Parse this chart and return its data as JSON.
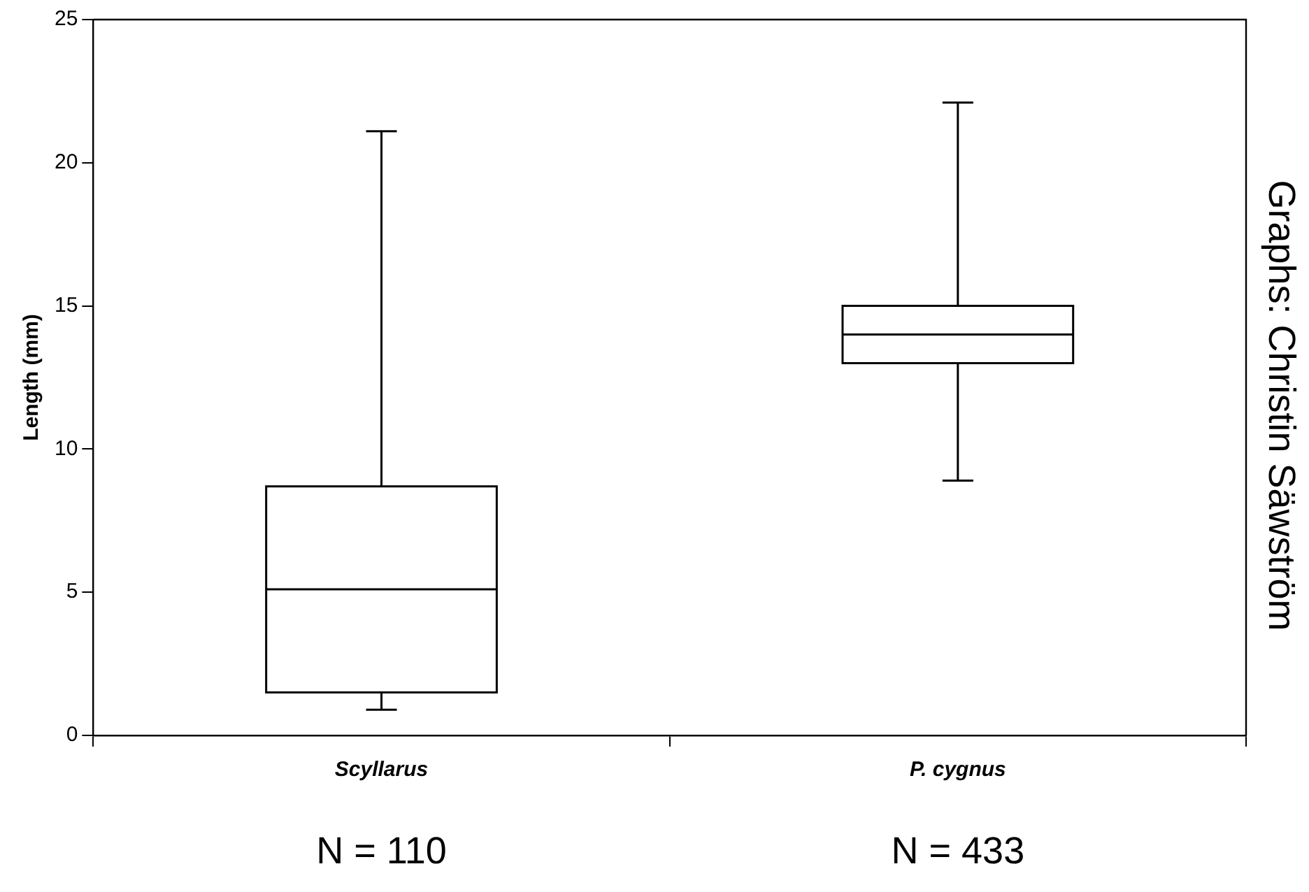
{
  "chart_data": {
    "type": "box",
    "ylabel": "Length (mm)",
    "categories": [
      "Scyllarus",
      "P. cygnus"
    ],
    "boxes": [
      {
        "low": 0.9,
        "q1": 1.5,
        "median": 5.1,
        "q3": 8.7,
        "high": 21.1
      },
      {
        "low": 8.9,
        "q1": 13,
        "median": 14,
        "q3": 15,
        "high": 22.1
      }
    ],
    "ylim": [
      0,
      25
    ],
    "yticks": [
      0,
      5,
      10,
      15,
      20,
      25
    ],
    "grid": false,
    "legend": false,
    "color": "#ffffff",
    "annotations": [
      "N = 110",
      "N = 433",
      "Graphs: Christin Säwström"
    ]
  }
}
